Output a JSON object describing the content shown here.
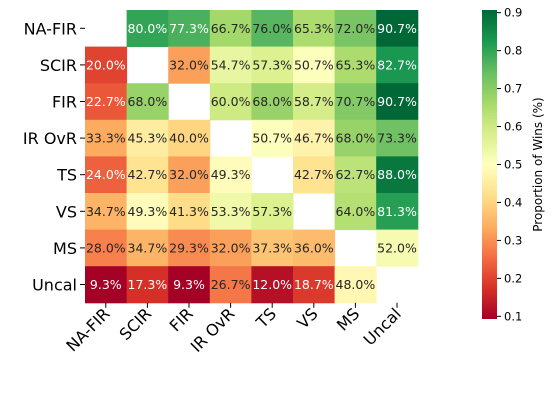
{
  "chart_data": {
    "type": "heatmap",
    "rows": [
      "NA-FIR",
      "SCIR",
      "FIR",
      "IR OvR",
      "TS",
      "VS",
      "MS",
      "Uncal"
    ],
    "columns": [
      "NA-FIR",
      "SCIR",
      "FIR",
      "IR OvR",
      "TS",
      "VS",
      "MS",
      "Uncal"
    ],
    "values": [
      [
        null,
        80.0,
        77.3,
        66.7,
        76.0,
        65.3,
        72.0,
        90.7
      ],
      [
        20.0,
        null,
        32.0,
        54.7,
        57.3,
        50.7,
        65.3,
        82.7
      ],
      [
        22.7,
        68.0,
        null,
        60.0,
        68.0,
        58.7,
        70.7,
        90.7
      ],
      [
        33.3,
        45.3,
        40.0,
        null,
        50.7,
        46.7,
        68.0,
        73.3
      ],
      [
        24.0,
        42.7,
        32.0,
        49.3,
        null,
        42.7,
        62.7,
        88.0
      ],
      [
        34.7,
        49.3,
        41.3,
        53.3,
        57.3,
        null,
        64.0,
        81.3
      ],
      [
        28.0,
        34.7,
        29.3,
        32.0,
        37.3,
        36.0,
        null,
        52.0
      ],
      [
        9.3,
        17.3,
        9.3,
        26.7,
        12.0,
        18.7,
        48.0,
        null
      ]
    ],
    "colormap": "RdYlGn",
    "colorbar": {
      "label": "Proportion of Wins (%)",
      "min": 0.093,
      "max": 0.907,
      "ticks": [
        "0.1",
        "0.2",
        "0.3",
        "0.4",
        "0.5",
        "0.6",
        "0.7",
        "0.8",
        "0.9"
      ]
    },
    "value_suffix": "%"
  }
}
